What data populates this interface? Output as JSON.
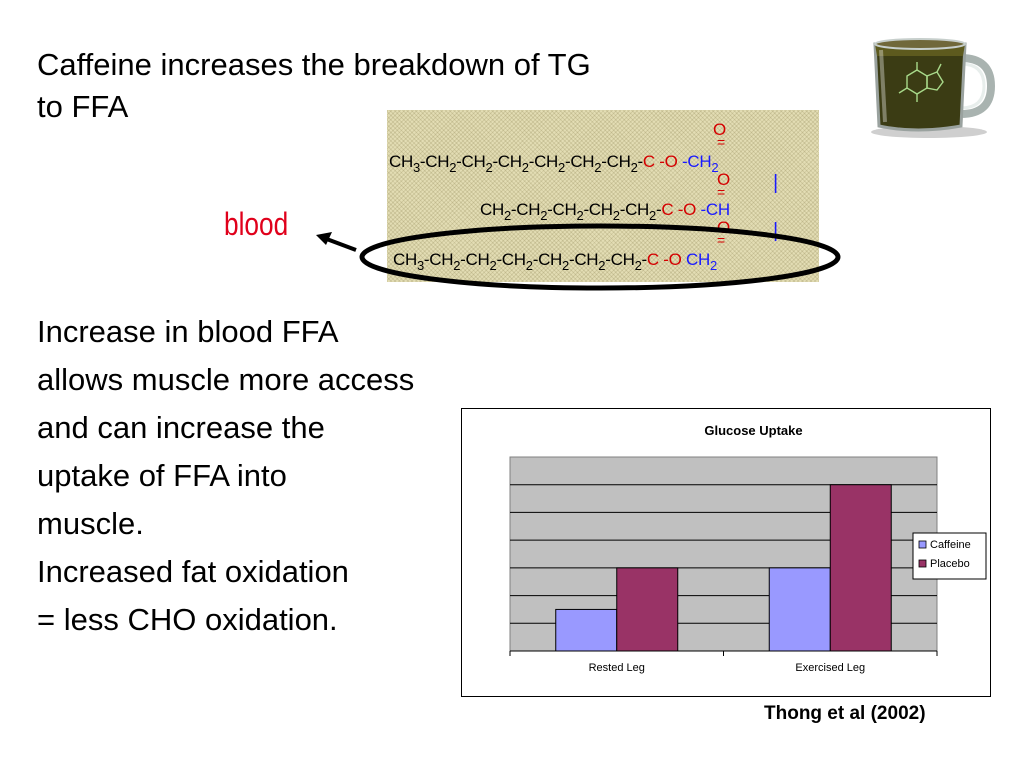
{
  "title": {
    "line1": "Caffeine increases the breakdown of TG",
    "line2": "to FFA"
  },
  "blood_label": "blood",
  "body_text": [
    "Increase in blood FFA",
    "allows muscle more access",
    "and can increase the",
    "uptake of FFA into",
    "muscle.",
    "Increased fat oxidation",
    "= less CHO oxidation."
  ],
  "citation": "Thong et al (2002)",
  "molecule": {
    "row1": {
      "chain": [
        "CH",
        "3",
        "-CH",
        "2",
        "-CH",
        "2",
        "-CH",
        "2",
        "-CH",
        "2",
        "-CH",
        "2",
        "-CH",
        "2",
        "-"
      ],
      "carbonyl_o": "O",
      "c": "C",
      "ester_o": "-O",
      "glycerol": "-CH",
      "glycerol_sub": "2"
    },
    "row2": {
      "chain": [
        "CH",
        "2",
        "-CH",
        "2",
        "-CH",
        "2",
        "-CH",
        "2",
        "-CH",
        "2",
        "-"
      ],
      "carbonyl_o": "O",
      "c": "C",
      "ester_o": "-O",
      "glycerol": "-CH",
      "glycerol_sub": ""
    },
    "row3": {
      "chain": [
        "CH",
        "3",
        "-CH",
        "2",
        "-CH",
        "2",
        "-CH",
        "2",
        "-CH",
        "2",
        "-CH",
        "2",
        "-CH",
        "2",
        "-"
      ],
      "carbonyl_o": "O",
      "c": "C",
      "ester_o": "-O",
      "glycerol": "CH",
      "glycerol_sub": "2"
    },
    "top_o": "O",
    "colors": {
      "ester": "#d40000",
      "glycerol": "#1a1aff"
    }
  },
  "chart_data": {
    "type": "bar",
    "title": "Glucose Uptake",
    "categories": [
      "Rested Leg",
      "Exercised Leg"
    ],
    "series": [
      {
        "name": "Caffeine",
        "values": [
          1.5,
          3.0
        ],
        "color": "#9999ff"
      },
      {
        "name": "Placebo",
        "values": [
          3.0,
          6.0
        ],
        "color": "#993366"
      }
    ],
    "ylim": [
      0,
      7
    ],
    "grid": true,
    "legend": "right",
    "xlabel": "",
    "ylabel": ""
  }
}
